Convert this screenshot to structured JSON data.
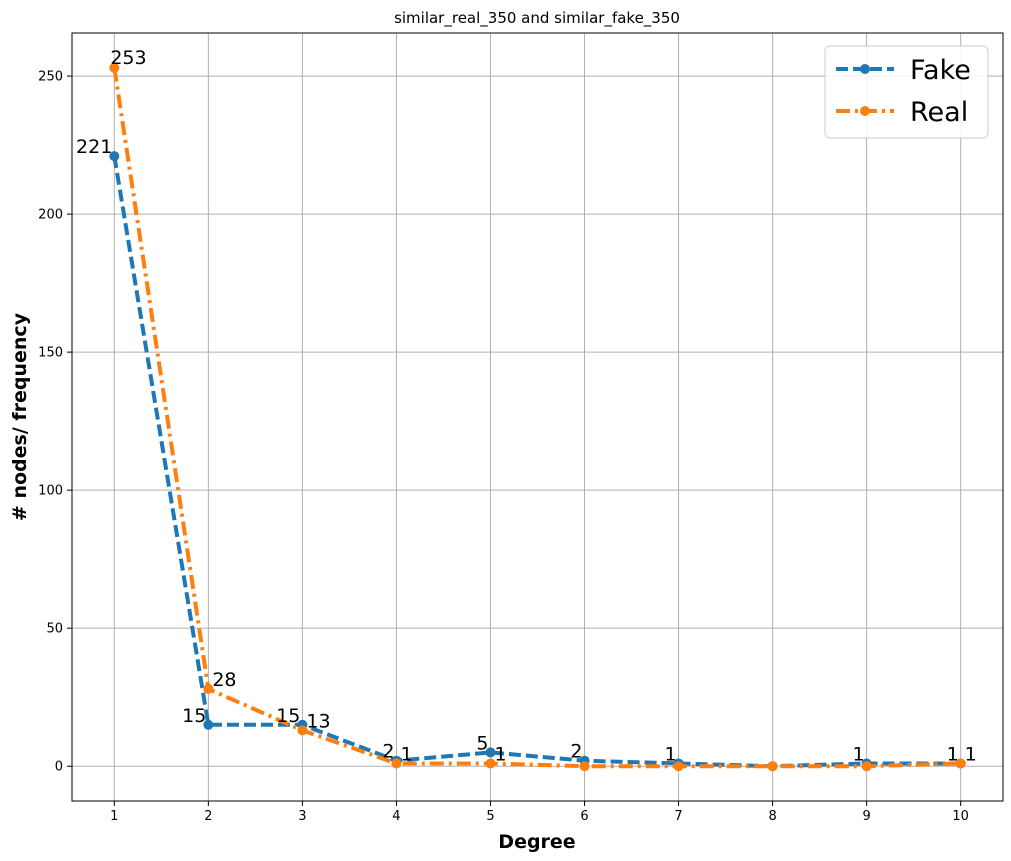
{
  "chart_data": {
    "type": "line",
    "title": "similar_real_350 and similar_fake_350",
    "xlabel": "Degree",
    "ylabel": "# nodes/ frequency",
    "x": [
      1,
      2,
      3,
      4,
      5,
      6,
      7,
      8,
      9,
      10
    ],
    "xlim": [
      0.55,
      10.45
    ],
    "ylim": [
      -12.6,
      265.6
    ],
    "xticks": [
      1,
      2,
      3,
      4,
      5,
      6,
      7,
      8,
      9,
      10
    ],
    "yticks": [
      0,
      50,
      100,
      150,
      200,
      250
    ],
    "grid": true,
    "legend_position": "top-right",
    "series": [
      {
        "name": "Fake",
        "color": "#1f77b4",
        "linestyle": "dashed",
        "values": [
          221,
          15,
          15,
          2,
          5,
          2,
          1,
          0,
          1,
          1
        ],
        "labels": [
          "221",
          "15",
          "15",
          "2",
          "5",
          "2",
          "1",
          "",
          "1",
          "1"
        ]
      },
      {
        "name": "Real",
        "color": "#ff7f0e",
        "linestyle": "dashdot",
        "values": [
          253,
          28,
          13,
          1,
          1,
          0,
          0,
          0,
          0,
          1
        ],
        "labels": [
          "253",
          "28",
          "13",
          "1",
          "1",
          "",
          "",
          "",
          "",
          "1"
        ]
      }
    ]
  }
}
